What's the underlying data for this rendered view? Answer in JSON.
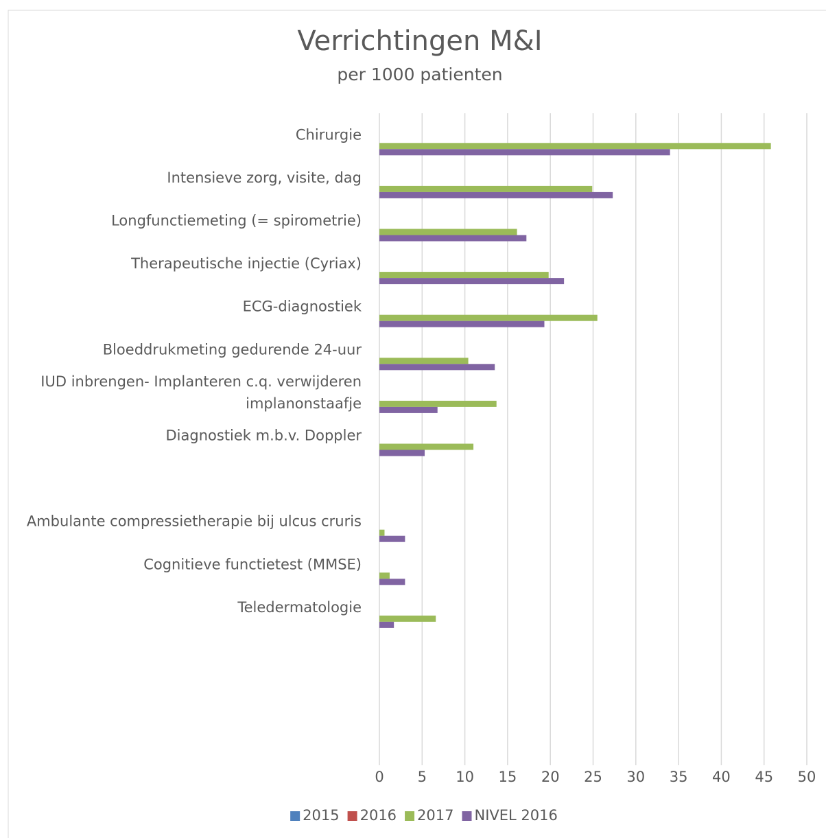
{
  "chart_data": {
    "type": "bar",
    "orientation": "horizontal",
    "title": "Verrichtingen M&I",
    "subtitle": "per 1000 patienten",
    "categories": [
      "Chirurgie",
      "Intensieve zorg, visite, dag",
      "Longfunctiemeting (= spirometrie)",
      "Therapeutische injectie (Cyriax)",
      "ECG-diagnostiek",
      "Bloeddrukmeting gedurende 24-uur",
      "IUD inbrengen- Implanteren c.q. verwijderen implanonstaafje",
      "Diagnostiek m.b.v. Doppler",
      null,
      "Ambulante compressietherapie bij ulcus cruris",
      "Cognitieve functietest (MMSE)",
      "Teledermatologie",
      null,
      null,
      null
    ],
    "series": [
      {
        "name": "2015",
        "color": "#4f81bd",
        "values": [
          null,
          null,
          null,
          null,
          null,
          null,
          null,
          null,
          null,
          null,
          null,
          null,
          null,
          null,
          null
        ]
      },
      {
        "name": "2016",
        "color": "#c0504d",
        "values": [
          null,
          null,
          null,
          null,
          null,
          null,
          null,
          null,
          null,
          null,
          null,
          null,
          null,
          null,
          null
        ]
      },
      {
        "name": "2017",
        "color": "#9bbb59",
        "values": [
          45.8,
          24.9,
          16.1,
          19.8,
          25.5,
          10.4,
          13.7,
          11.0,
          null,
          0.6,
          1.2,
          6.6,
          null,
          null,
          null
        ]
      },
      {
        "name": "NIVEL 2016",
        "color": "#8064a2",
        "values": [
          34.0,
          27.3,
          17.2,
          21.6,
          19.3,
          13.5,
          6.8,
          5.3,
          null,
          3.0,
          3.0,
          1.7,
          null,
          null,
          null
        ]
      }
    ],
    "xlim": [
      0,
      50
    ],
    "xticks": [
      0,
      5,
      10,
      15,
      20,
      25,
      30,
      35,
      40,
      45,
      50
    ],
    "grid": true,
    "legend": "bottom"
  }
}
